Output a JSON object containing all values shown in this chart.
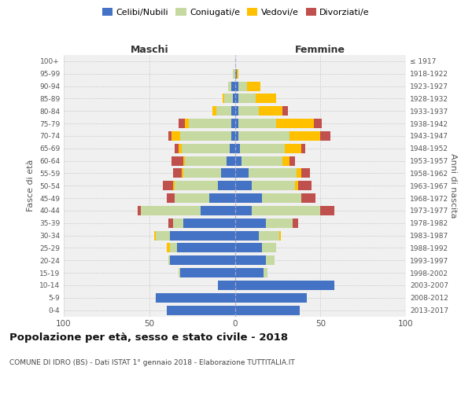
{
  "age_groups": [
    "0-4",
    "5-9",
    "10-14",
    "15-19",
    "20-24",
    "25-29",
    "30-34",
    "35-39",
    "40-44",
    "45-49",
    "50-54",
    "55-59",
    "60-64",
    "65-69",
    "70-74",
    "75-79",
    "80-84",
    "85-89",
    "90-94",
    "95-99",
    "100+"
  ],
  "birth_years": [
    "2013-2017",
    "2008-2012",
    "2003-2007",
    "1998-2002",
    "1993-1997",
    "1988-1992",
    "1983-1987",
    "1978-1982",
    "1973-1977",
    "1968-1972",
    "1963-1967",
    "1958-1962",
    "1953-1957",
    "1948-1952",
    "1943-1947",
    "1938-1942",
    "1933-1937",
    "1928-1932",
    "1923-1927",
    "1918-1922",
    "≤ 1917"
  ],
  "maschi": {
    "celibi": [
      40,
      46,
      10,
      32,
      38,
      34,
      38,
      30,
      20,
      15,
      10,
      8,
      5,
      3,
      2,
      2,
      2,
      1,
      2,
      0,
      0
    ],
    "coniugati": [
      0,
      0,
      0,
      1,
      1,
      4,
      8,
      6,
      35,
      20,
      25,
      22,
      24,
      28,
      30,
      25,
      9,
      5,
      2,
      1,
      0
    ],
    "vedovi": [
      0,
      0,
      0,
      0,
      0,
      2,
      1,
      0,
      0,
      0,
      1,
      1,
      1,
      2,
      5,
      2,
      2,
      1,
      0,
      0,
      0
    ],
    "divorziati": [
      0,
      0,
      0,
      0,
      0,
      0,
      0,
      3,
      2,
      5,
      6,
      5,
      7,
      2,
      2,
      4,
      0,
      0,
      0,
      0,
      0
    ]
  },
  "femmine": {
    "celibi": [
      38,
      42,
      58,
      17,
      18,
      16,
      14,
      18,
      10,
      16,
      10,
      8,
      4,
      3,
      2,
      2,
      2,
      2,
      2,
      1,
      0
    ],
    "coniugati": [
      0,
      0,
      0,
      2,
      5,
      8,
      12,
      16,
      40,
      23,
      25,
      28,
      24,
      26,
      30,
      22,
      12,
      10,
      5,
      0,
      0
    ],
    "vedovi": [
      0,
      0,
      0,
      0,
      0,
      0,
      1,
      0,
      0,
      0,
      2,
      3,
      4,
      10,
      18,
      22,
      14,
      12,
      8,
      1,
      0
    ],
    "divorziati": [
      0,
      0,
      0,
      0,
      0,
      0,
      0,
      3,
      8,
      8,
      8,
      5,
      3,
      2,
      6,
      5,
      3,
      0,
      0,
      0,
      0
    ]
  },
  "colors": {
    "celibi": "#4472c4",
    "coniugati": "#c5d9a0",
    "vedovi": "#ffc000",
    "divorziati": "#c0504d"
  },
  "xlim": 100,
  "title": "Popolazione per età, sesso e stato civile - 2018",
  "subtitle": "COMUNE DI IDRO (BS) - Dati ISTAT 1° gennaio 2018 - Elaborazione TUTTITALIA.IT",
  "ylabel_left": "Fasce di età",
  "ylabel_right": "Anni di nascita",
  "xlabel_maschi": "Maschi",
  "xlabel_femmine": "Femmine",
  "bg_color": "#f0f0f0",
  "bar_height": 0.75
}
